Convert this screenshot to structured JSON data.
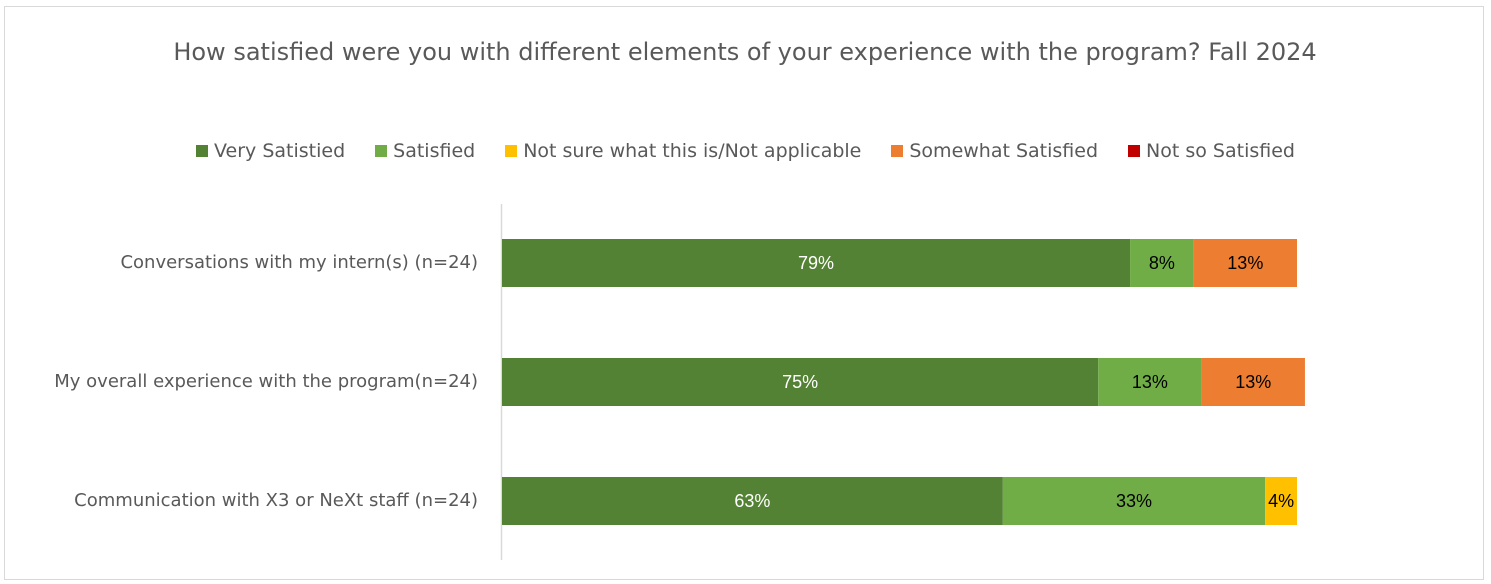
{
  "chart_data": {
    "type": "bar",
    "orientation": "horizontal",
    "stacked": true,
    "title": "How satisfied were you with different elements of your experience with the program? Fall 2024",
    "categories": [
      "Conversations with my intern(s) (n=24)",
      "My overall experience with the program(n=24)",
      "Communication with X3 or NeXt staff (n=24)"
    ],
    "series": [
      {
        "name": "Very Satistied",
        "color": "#548235",
        "label_color": "#ffffff",
        "values": [
          79,
          75,
          63
        ]
      },
      {
        "name": "Satisfied",
        "color": "#70ad47",
        "label_color": "#000000",
        "values": [
          8,
          13,
          33
        ]
      },
      {
        "name": "Not sure what this is/Not applicable",
        "color": "#ffc000",
        "label_color": "#000000",
        "values": [
          0,
          0,
          4
        ]
      },
      {
        "name": "Somewhat Satisfied",
        "color": "#ed7d31",
        "label_color": "#000000",
        "values": [
          13,
          13,
          0
        ]
      },
      {
        "name": "Not so Satisfied",
        "color": "#c00000",
        "label_color": "#ffffff",
        "values": [
          0,
          0,
          0
        ]
      }
    ],
    "value_suffix": "%",
    "xlim": [
      0,
      100
    ],
    "legend_position": "top",
    "grid": false
  }
}
